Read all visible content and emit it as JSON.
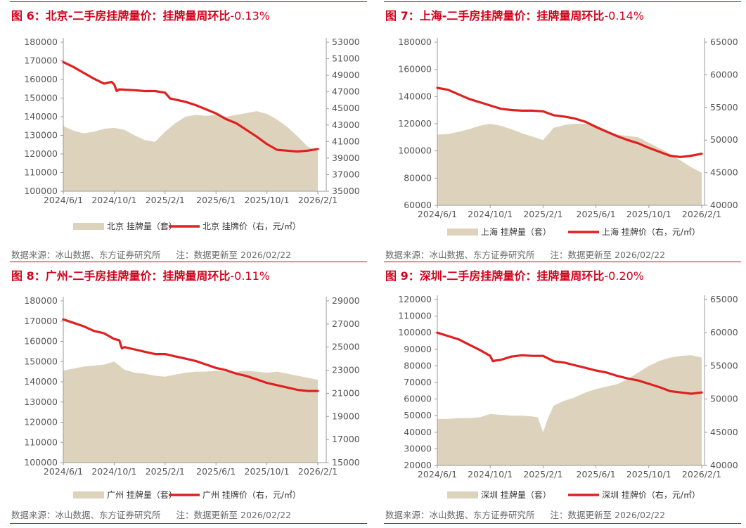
{
  "footer": {
    "source": "数据来源：冰山数据、东方证券研究所",
    "note": "注：数据更新至 2026/02/22"
  },
  "colors": {
    "accent": "#d0021b",
    "area": "#ddd3bd",
    "line": "#e02020",
    "text": "#555555"
  },
  "panels": [
    {
      "title": {
        "label": "图 6：",
        "body": "北京-二手房挂牌量价：挂牌量周环比",
        "value": "-0.13%"
      },
      "chart_data": {
        "type": "area+line",
        "categories": [
          "2024/6/1",
          "2024/10/1",
          "2025/2/1",
          "2025/6/1",
          "2025/10/1",
          "2026/2/1"
        ],
        "series": [
          {
            "name": "北京 挂牌量（套）",
            "axis": "left",
            "kind": "area",
            "x": [
              0,
              0.2,
              0.4,
              0.6,
              0.8,
              1.0,
              1.2,
              1.4,
              1.6,
              1.8,
              2.0,
              2.2,
              2.4,
              2.6,
              2.8,
              3.0,
              3.2,
              3.4,
              3.6,
              3.8,
              4.0,
              4.2,
              4.4,
              4.6,
              4.8,
              5.0
            ],
            "values": [
              135000,
              132500,
              131000,
              132000,
              133500,
              134000,
              133000,
              130000,
              127500,
              126500,
              132000,
              136500,
              140000,
              141000,
              140500,
              141000,
              140000,
              141000,
              142000,
              143000,
              141500,
              138500,
              134500,
              129500,
              124000,
              121500
            ]
          },
          {
            "name": "北京 挂牌价（右，元/㎡）",
            "axis": "right",
            "kind": "line",
            "x": [
              0,
              0.2,
              0.4,
              0.6,
              0.8,
              0.95,
              1.0,
              1.05,
              1.1,
              1.4,
              1.6,
              1.8,
              2.0,
              2.1,
              2.4,
              2.6,
              2.8,
              3.0,
              3.2,
              3.4,
              3.6,
              3.8,
              4.0,
              4.2,
              4.4,
              4.6,
              4.8,
              5.0
            ],
            "values": [
              50600,
              50000,
              49300,
              48600,
              48000,
              48200,
              47900,
              47100,
              47300,
              47200,
              47100,
              47100,
              46900,
              46200,
              45800,
              45400,
              44900,
              44400,
              43700,
              43200,
              42400,
              41600,
              40700,
              40000,
              39900,
              39800,
              39900,
              40100
            ]
          }
        ],
        "yleft": {
          "min": 100000,
          "max": 180000,
          "step": 10000
        },
        "yright": {
          "min": 35000,
          "max": 53000,
          "step": 2000
        }
      }
    },
    {
      "title": {
        "label": "图 7：",
        "body": "上海-二手房挂牌量价：挂牌量周环比",
        "value": "-0.14%"
      },
      "chart_data": {
        "type": "area+line",
        "categories": [
          "2024/6/1",
          "2024/10/1",
          "2025/2/1",
          "2025/6/1",
          "2025/10/1",
          "2026/2/1"
        ],
        "series": [
          {
            "name": "上海 挂牌量（套）",
            "axis": "left",
            "kind": "area",
            "x": [
              0,
              0.2,
              0.4,
              0.6,
              0.8,
              1.0,
              1.2,
              1.4,
              1.6,
              1.8,
              2.0,
              2.2,
              2.4,
              2.6,
              2.8,
              3.0,
              3.2,
              3.4,
              3.6,
              3.8,
              4.0,
              4.2,
              4.4,
              4.6,
              4.8,
              5.0
            ],
            "values": [
              112000,
              112500,
              114000,
              116000,
              118500,
              120000,
              118500,
              116000,
              113000,
              110500,
              108000,
              117000,
              119000,
              120000,
              120000,
              119000,
              115000,
              112000,
              111000,
              110000,
              106000,
              102000,
              98000,
              93000,
              88000,
              84000
            ]
          },
          {
            "name": "上海 挂牌价（右，元/㎡）",
            "axis": "right",
            "kind": "line",
            "x": [
              0,
              0.2,
              0.4,
              0.6,
              0.8,
              1.0,
              1.2,
              1.4,
              1.6,
              1.8,
              2.0,
              2.2,
              2.4,
              2.6,
              2.8,
              3.0,
              3.2,
              3.4,
              3.6,
              3.8,
              4.0,
              4.2,
              4.4,
              4.6,
              4.8,
              5.0
            ],
            "values": [
              58000,
              57700,
              57000,
              56300,
              55800,
              55300,
              54800,
              54600,
              54500,
              54500,
              54400,
              53800,
              53600,
              53300,
              52800,
              52000,
              51300,
              50600,
              50000,
              49500,
              48800,
              48200,
              47600,
              47400,
              47600,
              47900
            ]
          }
        ],
        "yleft": {
          "min": 60000,
          "max": 180000,
          "step": 20000
        },
        "yright": {
          "min": 40000,
          "max": 65000,
          "step": 5000
        }
      }
    },
    {
      "title": {
        "label": "图 8：",
        "body": "广州-二手房挂牌量价：挂牌量周环比",
        "value": "-0.11%"
      },
      "chart_data": {
        "type": "area+line",
        "categories": [
          "2024/6/1",
          "2024/10/1",
          "2025/2/1",
          "2025/6/1",
          "2025/10/1",
          "2026/2/1"
        ],
        "series": [
          {
            "name": "广州 挂牌量（套）",
            "axis": "left",
            "kind": "area",
            "x": [
              0,
              0.2,
              0.4,
              0.6,
              0.8,
              1.0,
              1.2,
              1.4,
              1.6,
              1.8,
              2.0,
              2.2,
              2.4,
              2.6,
              2.8,
              3.0,
              3.2,
              3.4,
              3.6,
              3.8,
              4.0,
              4.2,
              4.4,
              4.6,
              4.8,
              5.0
            ],
            "values": [
              145500,
              146500,
              147500,
              148000,
              148500,
              150000,
              146000,
              144500,
              144000,
              143000,
              142500,
              143500,
              144500,
              145000,
              145000,
              145500,
              145000,
              145000,
              145500,
              145000,
              144500,
              145000,
              144000,
              143000,
              142000,
              141000
            ]
          },
          {
            "name": "广州 挂牌价（右，元/㎡）",
            "axis": "right",
            "kind": "line",
            "x": [
              0,
              0.2,
              0.4,
              0.6,
              0.8,
              1.0,
              1.1,
              1.15,
              1.2,
              1.4,
              1.6,
              1.8,
              2.0,
              2.2,
              2.4,
              2.6,
              2.8,
              3.0,
              3.2,
              3.4,
              3.6,
              3.8,
              4.0,
              4.2,
              4.4,
              4.6,
              4.8,
              5.0
            ],
            "values": [
              27400,
              27100,
              26800,
              26400,
              26200,
              25700,
              25600,
              24900,
              25000,
              24800,
              24600,
              24400,
              24400,
              24200,
              24000,
              23800,
              23500,
              23200,
              23000,
              22700,
              22500,
              22200,
              21900,
              21700,
              21500,
              21300,
              21200,
              21200
            ]
          }
        ],
        "yleft": {
          "min": 100000,
          "max": 180000,
          "step": 10000
        },
        "yright": {
          "min": 15000,
          "max": 29000,
          "step": 2000
        }
      }
    },
    {
      "title": {
        "label": "图 9：",
        "body": "深圳-二手房挂牌量价：挂牌量周环比",
        "value": "-0.20%"
      },
      "chart_data": {
        "type": "area+line",
        "categories": [
          "2024/6/1",
          "2024/10/1",
          "2025/2/1",
          "2025/6/1",
          "2025/10/1",
          "2026/2/1"
        ],
        "series": [
          {
            "name": "深圳 挂牌量（套）",
            "axis": "left",
            "kind": "area",
            "x": [
              0,
              0.2,
              0.4,
              0.6,
              0.8,
              1.0,
              1.2,
              1.4,
              1.6,
              1.8,
              1.9,
              2.0,
              2.1,
              2.2,
              2.4,
              2.6,
              2.8,
              3.0,
              3.2,
              3.4,
              3.6,
              3.8,
              4.0,
              4.2,
              4.4,
              4.6,
              4.8,
              5.0
            ],
            "values": [
              48000,
              48000,
              48500,
              48500,
              49000,
              51000,
              50500,
              50000,
              50000,
              49500,
              49000,
              40000,
              49000,
              56000,
              59000,
              61000,
              64000,
              66000,
              67500,
              69000,
              72000,
              76000,
              80000,
              83000,
              85000,
              86000,
              86500,
              85000
            ]
          },
          {
            "name": "深圳 挂牌价（右，元/㎡）",
            "axis": "right",
            "kind": "line",
            "x": [
              0,
              0.2,
              0.4,
              0.6,
              0.8,
              1.0,
              1.05,
              1.1,
              1.2,
              1.4,
              1.6,
              1.8,
              2.0,
              2.2,
              2.4,
              2.6,
              2.8,
              3.0,
              3.2,
              3.4,
              3.6,
              3.8,
              4.0,
              4.2,
              4.4,
              4.6,
              4.8,
              5.0
            ],
            "values": [
              60000,
              59500,
              59000,
              58200,
              57400,
              56500,
              55700,
              55800,
              55900,
              56400,
              56600,
              56500,
              56500,
              55700,
              55500,
              55100,
              54700,
              54300,
              54000,
              53500,
              53100,
              52800,
              52300,
              51800,
              51200,
              51000,
              50800,
              51000
            ]
          }
        ],
        "yleft": {
          "min": 20000,
          "max": 120000,
          "step": 10000
        },
        "yright": {
          "min": 40000,
          "max": 65000,
          "step": 5000
        }
      }
    }
  ]
}
